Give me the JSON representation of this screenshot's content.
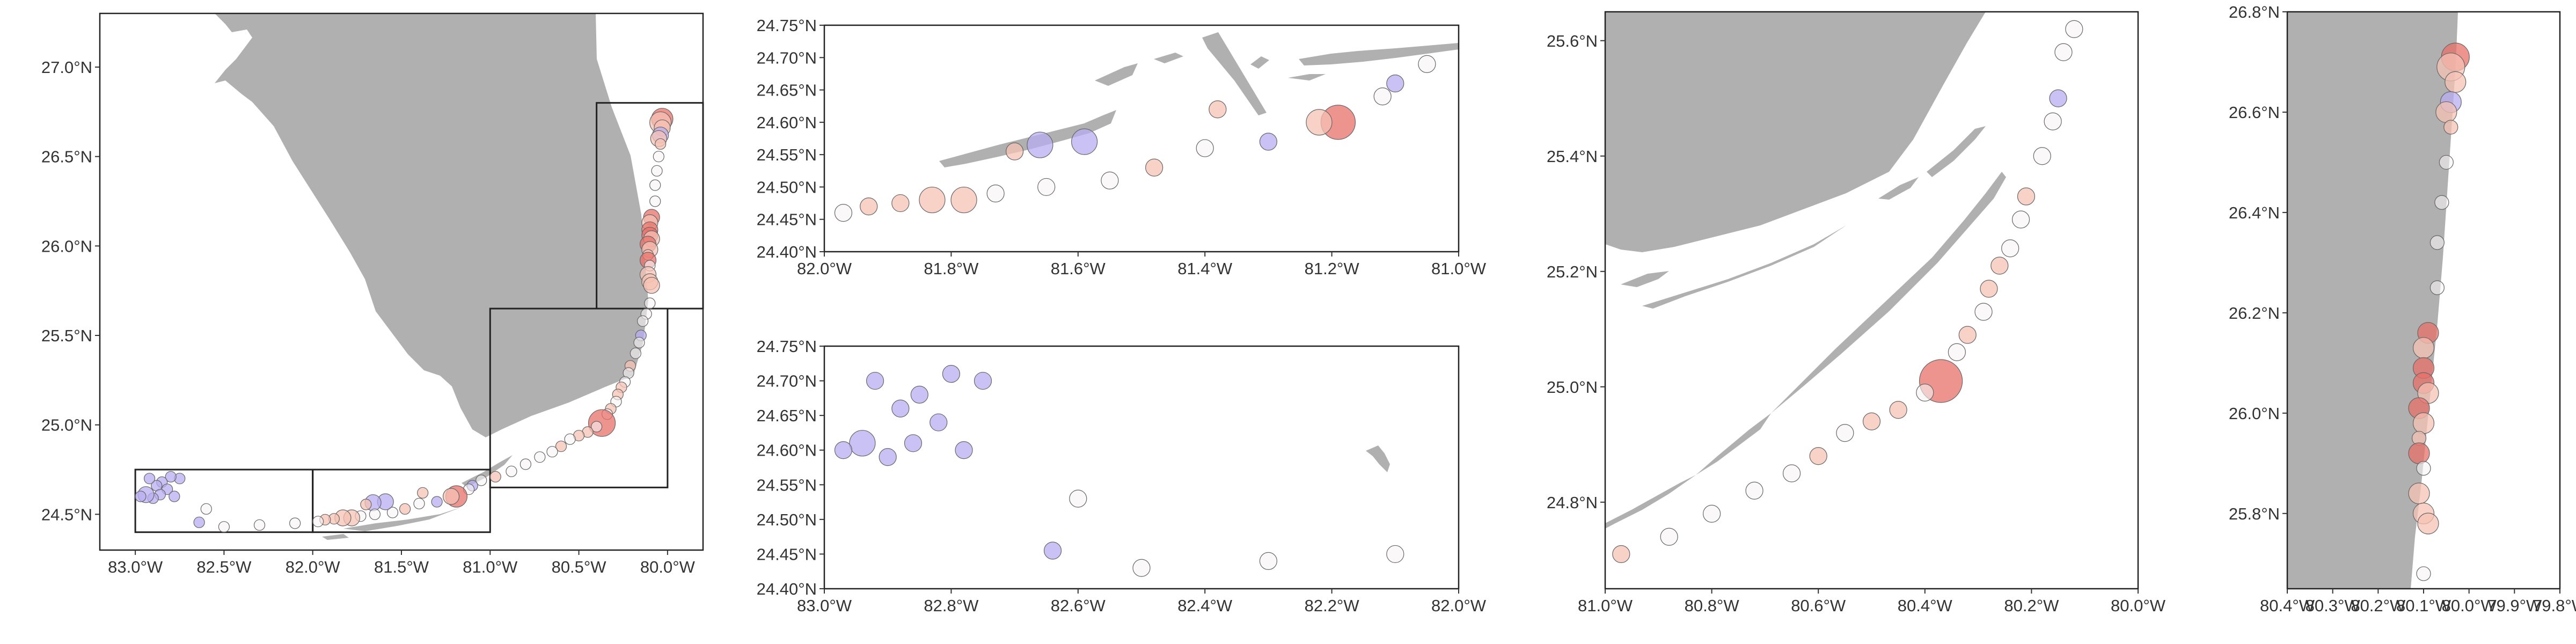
{
  "colors": {
    "land": "#b0b0b0",
    "high": "#e8706a",
    "mid": "#f5c2b4",
    "neutral": "#f7f3f3",
    "low": "#b8aef0",
    "frame": "#222222"
  },
  "panels": [
    {
      "id": "overview",
      "xlim": [
        -83.2,
        -79.8
      ],
      "ylim": [
        24.3,
        27.3
      ],
      "xticks": [
        {
          "v": -83.0,
          "label": "83.0°W"
        },
        {
          "v": -82.5,
          "label": "82.5°W"
        },
        {
          "v": -82.0,
          "label": "82.0°W"
        },
        {
          "v": -81.5,
          "label": "81.5°W"
        },
        {
          "v": -81.0,
          "label": "81.0°W"
        },
        {
          "v": -80.5,
          "label": "80.5°W"
        },
        {
          "v": -80.0,
          "label": "80.0°W"
        }
      ],
      "yticks": [
        {
          "v": 24.5,
          "label": "24.5°N"
        },
        {
          "v": 25.0,
          "label": "25.0°N"
        },
        {
          "v": 25.5,
          "label": "25.5°N"
        },
        {
          "v": 26.0,
          "label": "26.0°N"
        },
        {
          "v": 26.5,
          "label": "26.5°N"
        },
        {
          "v": 27.0,
          "label": "27.0°N"
        }
      ]
    },
    {
      "id": "lower-keys",
      "xlim": [
        -82.0,
        -81.0
      ],
      "ylim": [
        24.4,
        24.75
      ],
      "xticks": [
        {
          "v": -82.0,
          "label": "82.0°W"
        },
        {
          "v": -81.8,
          "label": "81.8°W"
        },
        {
          "v": -81.6,
          "label": "81.6°W"
        },
        {
          "v": -81.4,
          "label": "81.4°W"
        },
        {
          "v": -81.2,
          "label": "81.2°W"
        },
        {
          "v": -81.0,
          "label": "81.0°W"
        }
      ],
      "yticks": [
        {
          "v": 24.4,
          "label": "24.40°N"
        },
        {
          "v": 24.45,
          "label": "24.45°N"
        },
        {
          "v": 24.5,
          "label": "24.50°N"
        },
        {
          "v": 24.55,
          "label": "24.55°N"
        },
        {
          "v": 24.6,
          "label": "24.60°N"
        },
        {
          "v": 24.65,
          "label": "24.65°N"
        },
        {
          "v": 24.7,
          "label": "24.70°N"
        },
        {
          "v": 24.75,
          "label": "24.75°N"
        }
      ]
    },
    {
      "id": "dry-tortugas",
      "xlim": [
        -83.0,
        -82.0
      ],
      "ylim": [
        24.4,
        24.75
      ],
      "xticks": [
        {
          "v": -83.0,
          "label": "83.0°W"
        },
        {
          "v": -82.8,
          "label": "82.8°W"
        },
        {
          "v": -82.6,
          "label": "82.6°W"
        },
        {
          "v": -82.4,
          "label": "82.4°W"
        },
        {
          "v": -82.2,
          "label": "82.2°W"
        },
        {
          "v": -82.0,
          "label": "82.0°W"
        }
      ],
      "yticks": [
        {
          "v": 24.4,
          "label": "24.40°N"
        },
        {
          "v": 24.45,
          "label": "24.45°N"
        },
        {
          "v": 24.5,
          "label": "24.50°N"
        },
        {
          "v": 24.55,
          "label": "24.55°N"
        },
        {
          "v": 24.6,
          "label": "24.60°N"
        },
        {
          "v": 24.65,
          "label": "24.65°N"
        },
        {
          "v": 24.7,
          "label": "24.70°N"
        },
        {
          "v": 24.75,
          "label": "24.75°N"
        }
      ]
    },
    {
      "id": "upper-keys",
      "xlim": [
        -81.0,
        -80.0
      ],
      "ylim": [
        24.65,
        25.65
      ],
      "xticks": [
        {
          "v": -81.0,
          "label": "81.0°W"
        },
        {
          "v": -80.8,
          "label": "80.8°W"
        },
        {
          "v": -80.6,
          "label": "80.6°W"
        },
        {
          "v": -80.4,
          "label": "80.4°W"
        },
        {
          "v": -80.2,
          "label": "80.2°W"
        },
        {
          "v": -80.0,
          "label": "80.0°W"
        }
      ],
      "yticks": [
        {
          "v": 24.8,
          "label": "24.8°N"
        },
        {
          "v": 25.0,
          "label": "25.0°N"
        },
        {
          "v": 25.2,
          "label": "25.2°N"
        },
        {
          "v": 25.4,
          "label": "25.4°N"
        },
        {
          "v": 25.6,
          "label": "25.6°N"
        }
      ]
    },
    {
      "id": "southeast-florida",
      "xlim": [
        -80.4,
        -79.8
      ],
      "ylim": [
        25.65,
        26.8
      ],
      "xticks": [
        {
          "v": -80.4,
          "label": "80.4°W"
        },
        {
          "v": -80.3,
          "label": "80.3°W"
        },
        {
          "v": -80.2,
          "label": "80.2°W"
        },
        {
          "v": -80.1,
          "label": "80.1°W"
        },
        {
          "v": -80.0,
          "label": "80.0°W"
        },
        {
          "v": -79.9,
          "label": "79.9°W"
        },
        {
          "v": -79.8,
          "label": "79.8°W"
        }
      ],
      "yticks": [
        {
          "v": 25.8,
          "label": "25.8°N"
        },
        {
          "v": 26.0,
          "label": "26.0°N"
        },
        {
          "v": 26.2,
          "label": "26.2°N"
        },
        {
          "v": 26.4,
          "label": "26.4°N"
        },
        {
          "v": 26.6,
          "label": "26.6°N"
        },
        {
          "v": 26.8,
          "label": "26.8°N"
        }
      ]
    }
  ],
  "inset_boxes": [
    {
      "name": "dry-tortugas",
      "lon": [
        -83.0,
        -82.0
      ],
      "lat": [
        24.4,
        24.75
      ]
    },
    {
      "name": "lower-keys",
      "lon": [
        -82.0,
        -81.0
      ],
      "lat": [
        24.4,
        24.75
      ]
    },
    {
      "name": "upper-keys",
      "lon": [
        -81.0,
        -80.0
      ],
      "lat": [
        24.65,
        25.65
      ]
    },
    {
      "name": "southeast-florida",
      "lon": [
        -80.4,
        -79.8
      ],
      "lat": [
        25.65,
        26.8
      ]
    }
  ],
  "chart_data": {
    "type": "scatter",
    "title": "",
    "xlabel": "",
    "ylabel": "",
    "encoding": "geographic points; circle size and colour encode an unlabelled value (red = high, purple = low)",
    "levels": [
      "high",
      "mid",
      "neutral",
      "low"
    ],
    "sites": [
      {
        "lon": -80.03,
        "lat": 26.71,
        "level": "high",
        "size": 3
      },
      {
        "lon": -80.04,
        "lat": 26.69,
        "level": "mid",
        "size": 3
      },
      {
        "lon": -80.03,
        "lat": 26.66,
        "level": "mid",
        "size": 2
      },
      {
        "lon": -80.04,
        "lat": 26.62,
        "level": "low",
        "size": 2
      },
      {
        "lon": -80.05,
        "lat": 26.6,
        "level": "mid",
        "size": 2
      },
      {
        "lon": -80.04,
        "lat": 26.57,
        "level": "mid",
        "size": 1
      },
      {
        "lon": -80.05,
        "lat": 26.5,
        "level": "neutral",
        "size": 1
      },
      {
        "lon": -80.06,
        "lat": 26.42,
        "level": "neutral",
        "size": 1
      },
      {
        "lon": -80.07,
        "lat": 26.34,
        "level": "neutral",
        "size": 1
      },
      {
        "lon": -80.07,
        "lat": 26.25,
        "level": "neutral",
        "size": 1
      },
      {
        "lon": -80.09,
        "lat": 26.16,
        "level": "high",
        "size": 2
      },
      {
        "lon": -80.1,
        "lat": 26.13,
        "level": "mid",
        "size": 2
      },
      {
        "lon": -80.1,
        "lat": 26.09,
        "level": "high",
        "size": 2
      },
      {
        "lon": -80.1,
        "lat": 26.06,
        "level": "high",
        "size": 2
      },
      {
        "lon": -80.09,
        "lat": 26.04,
        "level": "mid",
        "size": 2
      },
      {
        "lon": -80.11,
        "lat": 26.01,
        "level": "high",
        "size": 2
      },
      {
        "lon": -80.1,
        "lat": 25.98,
        "level": "mid",
        "size": 2
      },
      {
        "lon": -80.11,
        "lat": 25.95,
        "level": "mid",
        "size": 1
      },
      {
        "lon": -80.11,
        "lat": 25.92,
        "level": "high",
        "size": 2
      },
      {
        "lon": -80.1,
        "lat": 25.89,
        "level": "neutral",
        "size": 1
      },
      {
        "lon": -80.11,
        "lat": 25.84,
        "level": "mid",
        "size": 2
      },
      {
        "lon": -80.1,
        "lat": 25.8,
        "level": "mid",
        "size": 2
      },
      {
        "lon": -80.09,
        "lat": 25.78,
        "level": "mid",
        "size": 2
      },
      {
        "lon": -80.1,
        "lat": 25.68,
        "level": "neutral",
        "size": 1
      },
      {
        "lon": -80.12,
        "lat": 25.62,
        "level": "neutral",
        "size": 1
      },
      {
        "lon": -80.14,
        "lat": 25.58,
        "level": "neutral",
        "size": 1
      },
      {
        "lon": -80.15,
        "lat": 25.5,
        "level": "low",
        "size": 1
      },
      {
        "lon": -80.16,
        "lat": 25.46,
        "level": "neutral",
        "size": 1
      },
      {
        "lon": -80.18,
        "lat": 25.4,
        "level": "neutral",
        "size": 1
      },
      {
        "lon": -80.21,
        "lat": 25.33,
        "level": "mid",
        "size": 1
      },
      {
        "lon": -80.22,
        "lat": 25.29,
        "level": "neutral",
        "size": 1
      },
      {
        "lon": -80.24,
        "lat": 25.24,
        "level": "neutral",
        "size": 1
      },
      {
        "lon": -80.26,
        "lat": 25.21,
        "level": "mid",
        "size": 1
      },
      {
        "lon": -80.28,
        "lat": 25.17,
        "level": "mid",
        "size": 1
      },
      {
        "lon": -80.29,
        "lat": 25.13,
        "level": "neutral",
        "size": 1
      },
      {
        "lon": -80.32,
        "lat": 25.09,
        "level": "mid",
        "size": 1
      },
      {
        "lon": -80.34,
        "lat": 25.06,
        "level": "neutral",
        "size": 1
      },
      {
        "lon": -80.37,
        "lat": 25.01,
        "level": "high",
        "size": 4
      },
      {
        "lon": -80.4,
        "lat": 24.99,
        "level": "neutral",
        "size": 1
      },
      {
        "lon": -80.45,
        "lat": 24.96,
        "level": "mid",
        "size": 1
      },
      {
        "lon": -80.5,
        "lat": 24.94,
        "level": "mid",
        "size": 1
      },
      {
        "lon": -80.55,
        "lat": 24.92,
        "level": "neutral",
        "size": 1
      },
      {
        "lon": -80.6,
        "lat": 24.88,
        "level": "mid",
        "size": 1
      },
      {
        "lon": -80.65,
        "lat": 24.85,
        "level": "neutral",
        "size": 1
      },
      {
        "lon": -80.72,
        "lat": 24.82,
        "level": "neutral",
        "size": 1
      },
      {
        "lon": -80.8,
        "lat": 24.78,
        "level": "neutral",
        "size": 1
      },
      {
        "lon": -80.88,
        "lat": 24.74,
        "level": "neutral",
        "size": 1
      },
      {
        "lon": -80.97,
        "lat": 24.71,
        "level": "mid",
        "size": 1
      },
      {
        "lon": -81.05,
        "lat": 24.69,
        "level": "neutral",
        "size": 1
      },
      {
        "lon": -81.1,
        "lat": 24.66,
        "level": "low",
        "size": 1
      },
      {
        "lon": -81.12,
        "lat": 24.64,
        "level": "neutral",
        "size": 1
      },
      {
        "lon": -81.19,
        "lat": 24.6,
        "level": "high",
        "size": 3
      },
      {
        "lon": -81.22,
        "lat": 24.6,
        "level": "mid",
        "size": 2
      },
      {
        "lon": -81.3,
        "lat": 24.57,
        "level": "low",
        "size": 1
      },
      {
        "lon": -81.38,
        "lat": 24.62,
        "level": "mid",
        "size": 1
      },
      {
        "lon": -81.4,
        "lat": 24.56,
        "level": "neutral",
        "size": 1
      },
      {
        "lon": -81.48,
        "lat": 24.53,
        "level": "mid",
        "size": 1
      },
      {
        "lon": -81.55,
        "lat": 24.51,
        "level": "neutral",
        "size": 1
      },
      {
        "lon": -81.59,
        "lat": 24.57,
        "level": "low",
        "size": 2
      },
      {
        "lon": -81.66,
        "lat": 24.565,
        "level": "low",
        "size": 2
      },
      {
        "lon": -81.7,
        "lat": 24.555,
        "level": "mid",
        "size": 1
      },
      {
        "lon": -81.65,
        "lat": 24.5,
        "level": "neutral",
        "size": 1
      },
      {
        "lon": -81.73,
        "lat": 24.49,
        "level": "neutral",
        "size": 1
      },
      {
        "lon": -81.78,
        "lat": 24.48,
        "level": "mid",
        "size": 2
      },
      {
        "lon": -81.83,
        "lat": 24.48,
        "level": "mid",
        "size": 2
      },
      {
        "lon": -81.88,
        "lat": 24.475,
        "level": "mid",
        "size": 1
      },
      {
        "lon": -81.93,
        "lat": 24.47,
        "level": "mid",
        "size": 1
      },
      {
        "lon": -81.97,
        "lat": 24.46,
        "level": "neutral",
        "size": 1
      },
      {
        "lon": -82.1,
        "lat": 24.45,
        "level": "neutral",
        "size": 1
      },
      {
        "lon": -82.3,
        "lat": 24.44,
        "level": "neutral",
        "size": 1
      },
      {
        "lon": -82.5,
        "lat": 24.43,
        "level": "neutral",
        "size": 1
      },
      {
        "lon": -82.64,
        "lat": 24.455,
        "level": "low",
        "size": 1
      },
      {
        "lon": -82.6,
        "lat": 24.53,
        "level": "neutral",
        "size": 1
      },
      {
        "lon": -82.75,
        "lat": 24.7,
        "level": "low",
        "size": 1
      },
      {
        "lon": -82.8,
        "lat": 24.71,
        "level": "low",
        "size": 1
      },
      {
        "lon": -82.85,
        "lat": 24.68,
        "level": "low",
        "size": 1
      },
      {
        "lon": -82.82,
        "lat": 24.64,
        "level": "low",
        "size": 1
      },
      {
        "lon": -82.88,
        "lat": 24.66,
        "level": "low",
        "size": 1
      },
      {
        "lon": -82.86,
        "lat": 24.61,
        "level": "low",
        "size": 1
      },
      {
        "lon": -82.9,
        "lat": 24.59,
        "level": "low",
        "size": 1
      },
      {
        "lon": -82.94,
        "lat": 24.61,
        "level": "low",
        "size": 2
      },
      {
        "lon": -82.97,
        "lat": 24.6,
        "level": "low",
        "size": 1
      },
      {
        "lon": -82.78,
        "lat": 24.6,
        "level": "low",
        "size": 1
      },
      {
        "lon": -82.92,
        "lat": 24.7,
        "level": "low",
        "size": 1
      }
    ]
  }
}
